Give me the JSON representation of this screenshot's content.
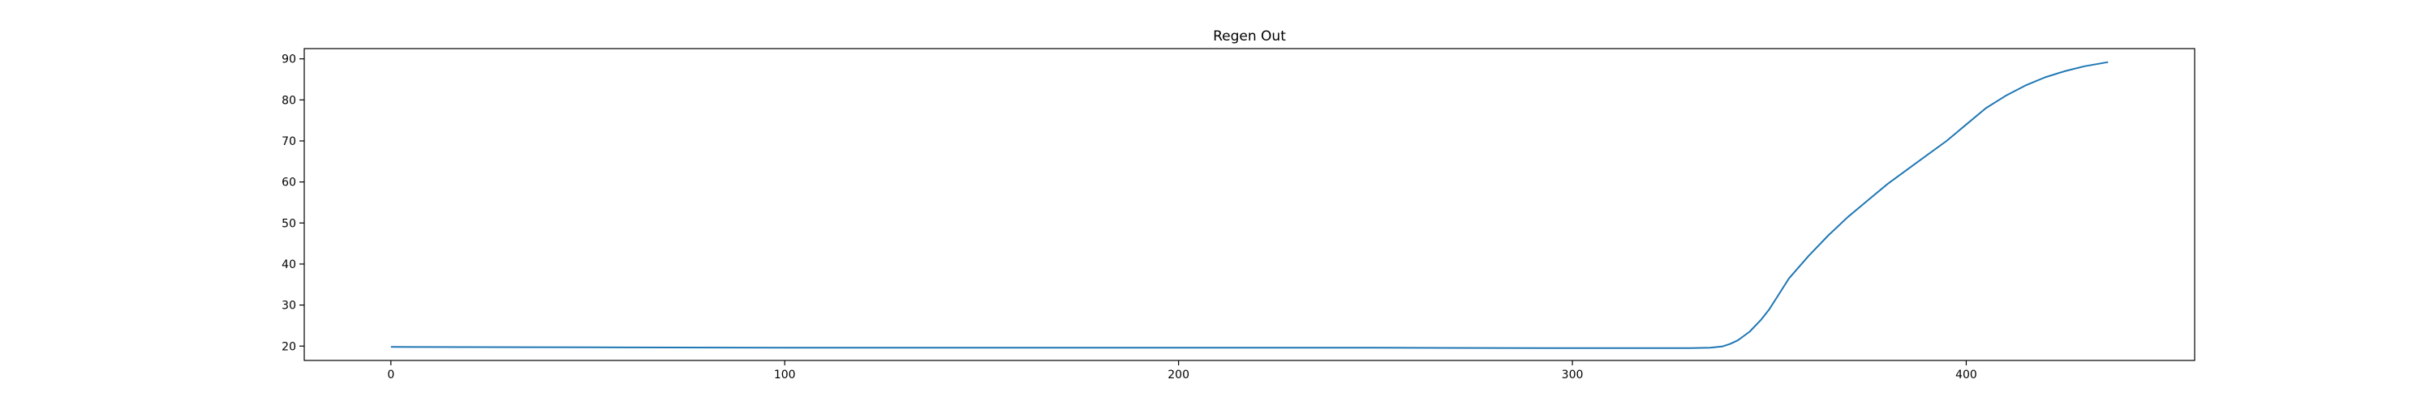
{
  "chart_data": {
    "type": "line",
    "title": "Regen Out",
    "xlabel": "",
    "ylabel": "",
    "xlim": [
      -22,
      458
    ],
    "ylim": [
      16.5,
      92.5
    ],
    "x_ticks": [
      0,
      100,
      200,
      300,
      400
    ],
    "y_ticks": [
      20,
      30,
      40,
      50,
      60,
      70,
      80,
      90
    ],
    "grid": false,
    "series": [
      {
        "color": "#1f77b4",
        "x": [
          0,
          50,
          100,
          150,
          200,
          250,
          300,
          330,
          335,
          338,
          340,
          342,
          345,
          348,
          350,
          352,
          355,
          360,
          365,
          370,
          375,
          380,
          385,
          390,
          395,
          400,
          405,
          410,
          415,
          420,
          425,
          430,
          436
        ],
        "y": [
          19.8,
          19.7,
          19.6,
          19.6,
          19.6,
          19.6,
          19.5,
          19.5,
          19.6,
          19.9,
          20.5,
          21.4,
          23.5,
          26.5,
          29.0,
          32.0,
          36.5,
          42.0,
          47.0,
          51.5,
          55.5,
          59.5,
          63.0,
          66.5,
          70.0,
          74.0,
          78.0,
          81.0,
          83.5,
          85.5,
          87.0,
          88.2,
          89.2
        ]
      }
    ]
  }
}
